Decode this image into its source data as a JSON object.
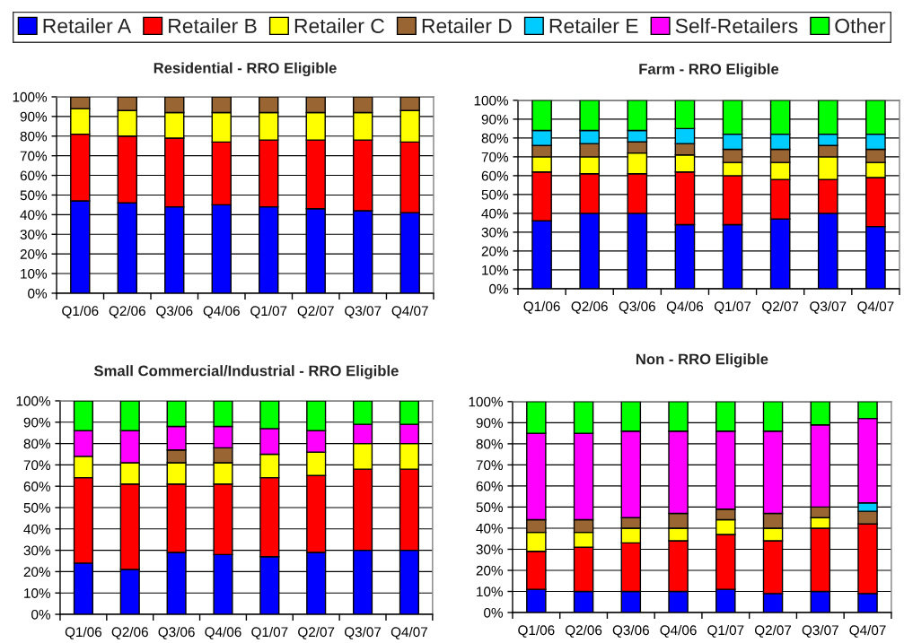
{
  "chart_data": [
    {
      "type": "bar",
      "title": "Residential - RRO Eligible",
      "categories": [
        "Q1/06",
        "Q2/06",
        "Q3/06",
        "Q4/06",
        "Q1/07",
        "Q2/07",
        "Q3/07",
        "Q4/07"
      ],
      "stacked": true,
      "ylim": [
        0,
        100
      ],
      "yticks": [
        {
          "value": 0,
          "label": "0%"
        },
        {
          "value": 10,
          "label": "10%"
        },
        {
          "value": 20,
          "label": "20%"
        },
        {
          "value": 30,
          "label": "30%"
        },
        {
          "value": 40,
          "label": "40%"
        },
        {
          "value": 50,
          "label": "50%"
        },
        {
          "value": 60,
          "label": "60%"
        },
        {
          "value": 70,
          "label": "70%"
        },
        {
          "value": 80,
          "label": "80%"
        },
        {
          "value": 90,
          "label": "90%"
        },
        {
          "value": 100,
          "label": "100%"
        }
      ],
      "grid": "y",
      "legend": "top",
      "series": [
        {
          "name": "Retailer A",
          "color": "#0000ff",
          "values": [
            47,
            46,
            44,
            45,
            44,
            43,
            42,
            41
          ]
        },
        {
          "name": "Retailer B",
          "color": "#ff0000",
          "values": [
            34,
            34,
            35,
            32,
            34,
            35,
            36,
            36
          ]
        },
        {
          "name": "Retailer C",
          "color": "#ffff00",
          "values": [
            13,
            13,
            13,
            15,
            14,
            14,
            14,
            16
          ]
        },
        {
          "name": "Retailer D",
          "color": "#996633",
          "values": [
            6,
            7,
            8,
            8,
            8,
            8,
            8,
            7
          ]
        }
      ]
    },
    {
      "type": "bar",
      "title": "Farm - RRO Eligible",
      "categories": [
        "Q1/06",
        "Q2/06",
        "Q3/06",
        "Q4/06",
        "Q1/07",
        "Q2/07",
        "Q3/07",
        "Q4/07"
      ],
      "stacked": true,
      "ylim": [
        0,
        100
      ],
      "yticks": [
        {
          "value": 0,
          "label": "0%"
        },
        {
          "value": 10,
          "label": "10%"
        },
        {
          "value": 20,
          "label": "20%"
        },
        {
          "value": 30,
          "label": "30%"
        },
        {
          "value": 40,
          "label": "40%"
        },
        {
          "value": 50,
          "label": "50%"
        },
        {
          "value": 60,
          "label": "60%"
        },
        {
          "value": 70,
          "label": "70%"
        },
        {
          "value": 80,
          "label": "80%"
        },
        {
          "value": 90,
          "label": "90%"
        },
        {
          "value": 100,
          "label": "100%"
        }
      ],
      "grid": "y",
      "legend": "top",
      "series": [
        {
          "name": "Retailer A",
          "color": "#0000ff",
          "values": [
            36,
            40,
            40,
            34,
            34,
            37,
            40,
            33
          ]
        },
        {
          "name": "Retailer B",
          "color": "#ff0000",
          "values": [
            26,
            21,
            21,
            28,
            26,
            21,
            18,
            26
          ]
        },
        {
          "name": "Retailer C",
          "color": "#ffff00",
          "values": [
            8,
            9,
            11,
            9,
            7,
            9,
            12,
            8
          ]
        },
        {
          "name": "Retailer D",
          "color": "#996633",
          "values": [
            6,
            7,
            6,
            6,
            7,
            7,
            6,
            7
          ]
        },
        {
          "name": "Retailer E",
          "color": "#00ccff",
          "values": [
            8,
            7,
            6,
            8,
            8,
            8,
            6,
            8
          ]
        },
        {
          "name": "Other",
          "color": "#00ff00",
          "values": [
            16,
            16,
            16,
            15,
            18,
            18,
            18,
            18
          ]
        }
      ]
    },
    {
      "type": "bar",
      "title": "Small Commercial/Industrial - RRO Eligible",
      "categories": [
        "Q1/06",
        "Q2/06",
        "Q3/06",
        "Q4/06",
        "Q1/07",
        "Q2/07",
        "Q3/07",
        "Q4/07"
      ],
      "stacked": true,
      "ylim": [
        0,
        100
      ],
      "yticks": [
        {
          "value": 0,
          "label": "0%"
        },
        {
          "value": 10,
          "label": "10%"
        },
        {
          "value": 20,
          "label": "20%"
        },
        {
          "value": 30,
          "label": "30%"
        },
        {
          "value": 40,
          "label": "40%"
        },
        {
          "value": 50,
          "label": "50%"
        },
        {
          "value": 60,
          "label": "60%"
        },
        {
          "value": 70,
          "label": "70%"
        },
        {
          "value": 80,
          "label": "80%"
        },
        {
          "value": 90,
          "label": "90%"
        },
        {
          "value": 100,
          "label": "100%"
        }
      ],
      "grid": "y",
      "legend": "top",
      "series": [
        {
          "name": "Retailer A",
          "color": "#0000ff",
          "values": [
            24,
            21,
            29,
            28,
            27,
            29,
            30,
            30
          ]
        },
        {
          "name": "Retailer B",
          "color": "#ff0000",
          "values": [
            40,
            40,
            32,
            33,
            37,
            36,
            38,
            38
          ]
        },
        {
          "name": "Retailer C",
          "color": "#ffff00",
          "values": [
            10,
            10,
            10,
            10,
            11,
            11,
            12,
            12
          ]
        },
        {
          "name": "Retailer D",
          "color": "#996633",
          "values": [
            null,
            null,
            6,
            7,
            null,
            null,
            null,
            null
          ]
        },
        {
          "name": "Self-Retailers",
          "color": "#ff00ff",
          "values": [
            12,
            15,
            11,
            10,
            12,
            10,
            9,
            9
          ]
        },
        {
          "name": "Other",
          "color": "#00ff00",
          "values": [
            14,
            14,
            12,
            12,
            13,
            14,
            11,
            11
          ]
        }
      ]
    },
    {
      "type": "bar",
      "title": "Non - RRO Eligible",
      "categories": [
        "Q1/06",
        "Q2/06",
        "Q3/06",
        "Q4/06",
        "Q1/07",
        "Q2/07",
        "Q3/07",
        "Q4/07"
      ],
      "stacked": true,
      "ylim": [
        0,
        100
      ],
      "yticks": [
        {
          "value": 0,
          "label": "0%"
        },
        {
          "value": 10,
          "label": "10%"
        },
        {
          "value": 20,
          "label": "20%"
        },
        {
          "value": 30,
          "label": "30%"
        },
        {
          "value": 40,
          "label": "40%"
        },
        {
          "value": 50,
          "label": "50%"
        },
        {
          "value": 60,
          "label": "60%"
        },
        {
          "value": 70,
          "label": "70%"
        },
        {
          "value": 80,
          "label": "80%"
        },
        {
          "value": 90,
          "label": "90%"
        },
        {
          "value": 100,
          "label": "100%"
        }
      ],
      "grid": "y",
      "legend": "top",
      "series": [
        {
          "name": "Retailer A",
          "color": "#0000ff",
          "values": [
            11,
            10,
            10,
            10,
            11,
            9,
            10,
            9
          ]
        },
        {
          "name": "Retailer B",
          "color": "#ff0000",
          "values": [
            18,
            21,
            23,
            24,
            26,
            25,
            30,
            33
          ]
        },
        {
          "name": "Retailer C",
          "color": "#ffff00",
          "values": [
            9,
            7,
            7,
            6,
            7,
            6,
            5,
            null
          ]
        },
        {
          "name": "Retailer D",
          "color": "#996633",
          "values": [
            6,
            6,
            5,
            7,
            5,
            7,
            5,
            6
          ]
        },
        {
          "name": "Retailer E",
          "color": "#00ccff",
          "values": [
            null,
            null,
            null,
            null,
            null,
            null,
            null,
            4
          ]
        },
        {
          "name": "Self-Retailers",
          "color": "#ff00ff",
          "values": [
            41,
            41,
            41,
            39,
            37,
            39,
            39,
            40
          ]
        },
        {
          "name": "Other",
          "color": "#00ff00",
          "values": [
            15,
            15,
            14,
            14,
            14,
            14,
            11,
            8
          ]
        }
      ]
    }
  ]
}
